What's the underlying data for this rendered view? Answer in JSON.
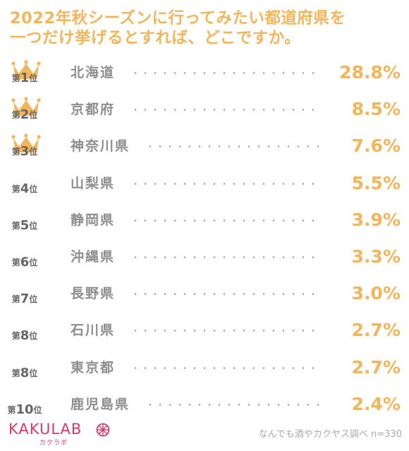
{
  "title_lines": [
    "2022年秋シーズンに行ってみたい都道府県を",
    "一つだけ挙げるとすれば、どこですか。"
  ],
  "rank_prefix": "第",
  "rank_suffix": "位",
  "colors": {
    "accent": "#f2b55a",
    "prefecture_text": "#8e8e8e",
    "rank_text": "#666666",
    "dots": "#9c9c9c",
    "logo": "#d83a6a",
    "source_text": "#aaaaaa"
  },
  "icons": {
    "top_rank_badge": "crown-icon",
    "logo_mark": "flower-icon"
  },
  "chart_data": {
    "type": "table",
    "title": "2022年秋シーズンに行ってみたい都道府県を一つだけ挙げるとすれば、どこですか。",
    "rows": [
      {
        "rank": "1",
        "prefecture": "北海道",
        "value": 28.8,
        "label": "28.8%",
        "crown": true
      },
      {
        "rank": "2",
        "prefecture": "京都府",
        "value": 8.5,
        "label": "8.5%",
        "crown": true
      },
      {
        "rank": "3",
        "prefecture": "神奈川県",
        "value": 7.6,
        "label": "7.6%",
        "crown": true
      },
      {
        "rank": "4",
        "prefecture": "山梨県",
        "value": 5.5,
        "label": "5.5%",
        "crown": false
      },
      {
        "rank": "5",
        "prefecture": "静岡県",
        "value": 3.9,
        "label": "3.9%",
        "crown": false
      },
      {
        "rank": "6",
        "prefecture": "沖縄県",
        "value": 3.3,
        "label": "3.3%",
        "crown": false
      },
      {
        "rank": "7",
        "prefecture": "長野県",
        "value": 3.0,
        "label": "3.0%",
        "crown": false
      },
      {
        "rank": "8",
        "prefecture": "石川県",
        "value": 2.7,
        "label": "2.7%",
        "crown": false
      },
      {
        "rank": "8",
        "prefecture": "東京都",
        "value": 2.7,
        "label": "2.7%",
        "crown": false
      },
      {
        "rank": "10",
        "prefecture": "鹿児島県",
        "value": 2.4,
        "label": "2.4%",
        "crown": false
      }
    ]
  },
  "footer": {
    "logo_text": "KAKULAB",
    "logo_sub": "カクラボ",
    "source": "なんでも酒やカクヤス調べ n=330"
  }
}
